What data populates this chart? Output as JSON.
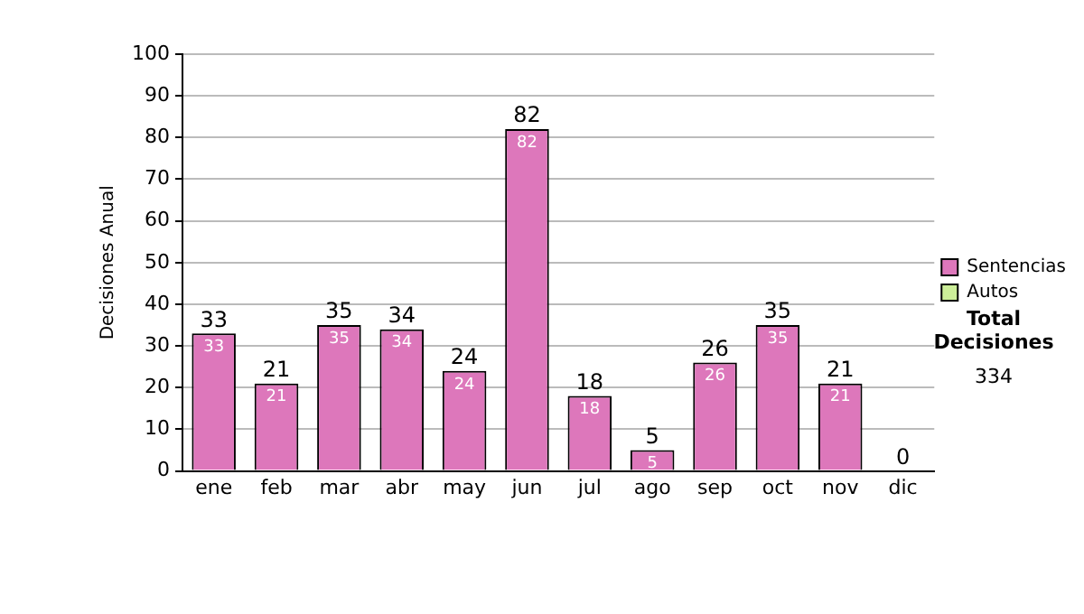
{
  "chart_data": {
    "type": "bar",
    "stacked": true,
    "ylabel": "Decisiones Anual",
    "categories": [
      "ene",
      "feb",
      "mar",
      "abr",
      "may",
      "jun",
      "jul",
      "ago",
      "sep",
      "oct",
      "nov",
      "dic"
    ],
    "series": [
      {
        "name": "Sentencias",
        "color": "#dd77bb",
        "values": [
          33,
          21,
          35,
          34,
          24,
          82,
          18,
          5,
          26,
          35,
          21,
          0
        ],
        "value_labels": [
          "33",
          "21",
          "35",
          "34",
          "24",
          "82",
          "18",
          "5",
          "26",
          "35",
          "21",
          null
        ]
      },
      {
        "name": "Autos",
        "color": "#ccee99",
        "values": [
          0,
          0,
          0,
          0,
          0,
          0,
          0,
          0,
          0,
          0,
          0,
          0
        ]
      }
    ],
    "totals": [
      "33",
      "21",
      "35",
      "34",
      "24",
      "82",
      "18",
      "5",
      "26",
      "35",
      "21",
      "0"
    ],
    "ylim": [
      0,
      100
    ],
    "yticks": [
      0,
      10,
      20,
      30,
      40,
      50,
      60,
      70,
      80,
      90,
      100
    ],
    "grid": "y",
    "legend": "right",
    "annotations": [
      "Total Decisiones",
      "334"
    ]
  }
}
